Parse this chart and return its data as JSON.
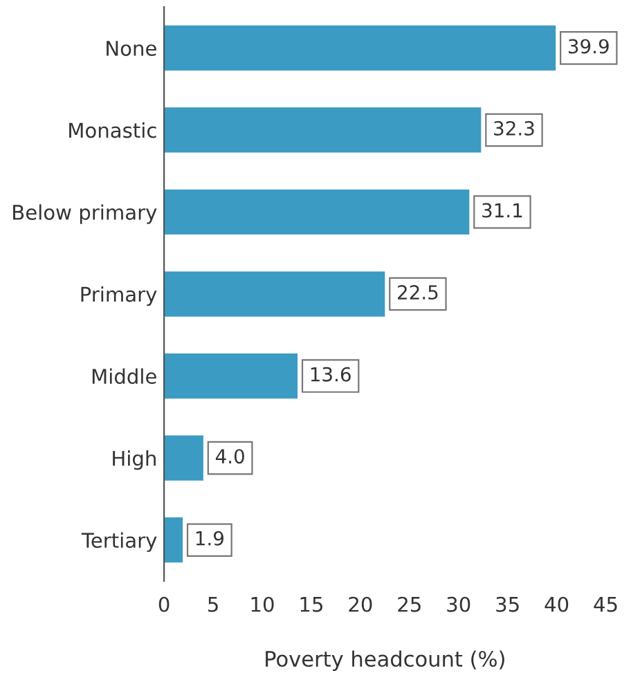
{
  "chart_data": {
    "type": "bar",
    "orientation": "horizontal",
    "xlabel": "Poverty headcount (%)",
    "categories": [
      "None",
      "Monastic",
      "Below primary",
      "Primary",
      "Middle",
      "High",
      "Tertiary"
    ],
    "values": [
      39.9,
      32.3,
      31.1,
      22.5,
      13.6,
      4.0,
      1.9
    ],
    "value_labels": [
      "39.9",
      "32.3",
      "31.1",
      "22.5",
      "13.6",
      "4.0",
      "1.9"
    ],
    "color": "#3b9bc3",
    "xlim": [
      0,
      45
    ],
    "xticks": [
      0,
      5,
      10,
      15,
      20,
      25,
      30,
      35,
      40,
      45
    ],
    "grid": false,
    "legend": false
  }
}
